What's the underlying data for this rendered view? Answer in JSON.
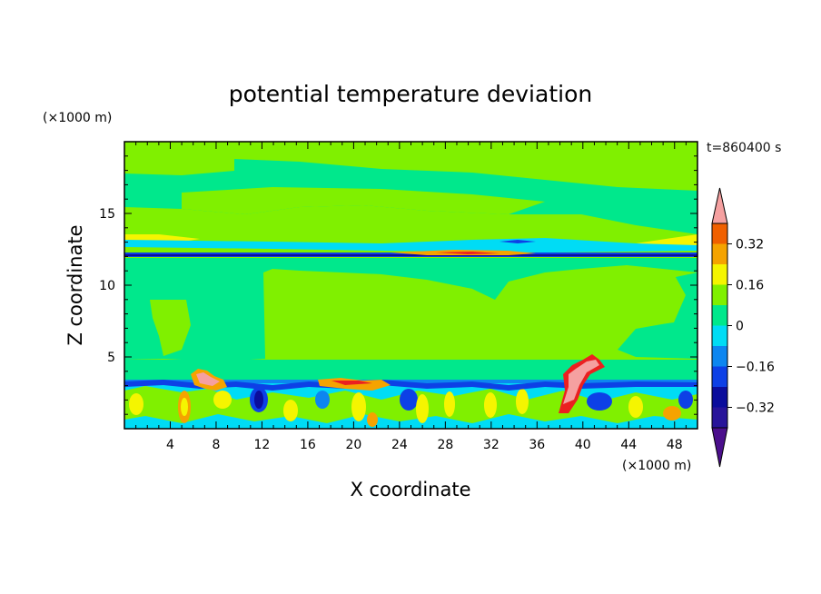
{
  "chart_data": {
    "type": "heatmap",
    "title": "potential temperature deviation",
    "xlabel": "X coordinate",
    "ylabel": "Z coordinate",
    "x_unit": "(×1000 m)",
    "y_unit": "(×1000 m)",
    "time_label": "t=860400 s",
    "xlim": [
      0,
      50
    ],
    "ylim": [
      0,
      20
    ],
    "x_ticks": [
      "4",
      "8",
      "12",
      "16",
      "20",
      "24",
      "28",
      "32",
      "36",
      "40",
      "44",
      "48"
    ],
    "x_tick_values": [
      4,
      8,
      12,
      16,
      20,
      24,
      28,
      32,
      36,
      40,
      44,
      48
    ],
    "y_ticks": [
      "5",
      "10",
      "15"
    ],
    "y_tick_values": [
      5,
      10,
      15
    ],
    "colorbar": {
      "levels": [
        -0.4,
        -0.32,
        -0.24,
        -0.16,
        -0.08,
        0,
        0.08,
        0.16,
        0.24,
        0.32,
        0.4
      ],
      "labels": [
        "0.32",
        "0.16",
        "0",
        "−0.16",
        "−0.32"
      ],
      "label_values": [
        0.32,
        0.16,
        0,
        -0.16,
        -0.32
      ],
      "colors": [
        "#4b0f8c",
        "#28149a",
        "#0b0d9c",
        "#0d40e6",
        "#0d86f0",
        "#00dcf5",
        "#00e88c",
        "#80f000",
        "#f5f500",
        "#f5a300",
        "#f06000",
        "#eb2020",
        "#f5a0a0"
      ],
      "extend": "both"
    },
    "region_colors": {
      "background": "#80f000",
      "near_zero_negative": "#00e88c",
      "cyan": "#00dcf5",
      "light_blue": "#0d86f0",
      "blue": "#0d40e6",
      "dark_blue": "#0b0d9c",
      "yellow": "#f5f500",
      "orange": "#f5a300",
      "red": "#eb2020",
      "pink": "#f5a0a0"
    }
  }
}
